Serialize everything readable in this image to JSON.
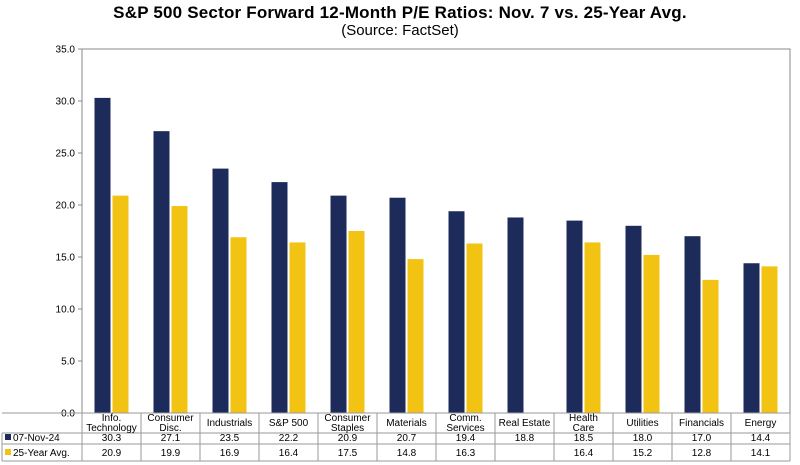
{
  "title": "S&P 500 Sector Forward 12-Month P/E Ratios: Nov. 7 vs. 25-Year Avg.",
  "subtitle": "(Source: FactSet)",
  "chart_data": {
    "type": "bar",
    "categories": [
      [
        "Info.",
        "Technology"
      ],
      [
        "Consumer",
        "Disc."
      ],
      [
        "Industrials"
      ],
      [
        "S&P 500"
      ],
      [
        "Consumer",
        "Staples"
      ],
      [
        "Materials"
      ],
      [
        "Comm.",
        "Services"
      ],
      [
        "Real Estate"
      ],
      [
        "Health",
        "Care"
      ],
      [
        "Utilities"
      ],
      [
        "Financials"
      ],
      [
        "Energy"
      ]
    ],
    "series": [
      {
        "name": "07-Nov-24",
        "color": "#1c2b5a",
        "values": [
          30.3,
          27.1,
          23.5,
          22.2,
          20.9,
          20.7,
          19.4,
          18.8,
          18.5,
          18.0,
          17.0,
          14.4
        ],
        "labels": [
          "30.3",
          "27.1",
          "23.5",
          "22.2",
          "20.9",
          "20.7",
          "19.4",
          "18.8",
          "18.5",
          "18.0",
          "17.0",
          "14.4"
        ]
      },
      {
        "name": "25-Year Avg.",
        "color": "#f2c313",
        "values": [
          20.9,
          19.9,
          16.9,
          16.4,
          17.5,
          14.8,
          16.3,
          null,
          16.4,
          15.2,
          12.8,
          14.1
        ],
        "labels": [
          "20.9",
          "19.9",
          "16.9",
          "16.4",
          "17.5",
          "14.8",
          "16.3",
          "",
          "16.4",
          "15.2",
          "12.8",
          "14.1"
        ]
      }
    ],
    "ylim": [
      0,
      35
    ],
    "yticks": [
      "0.0",
      "5.0",
      "10.0",
      "15.0",
      "20.0",
      "25.0",
      "30.0",
      "35.0"
    ],
    "grid": false,
    "legend": "data-table-below"
  }
}
